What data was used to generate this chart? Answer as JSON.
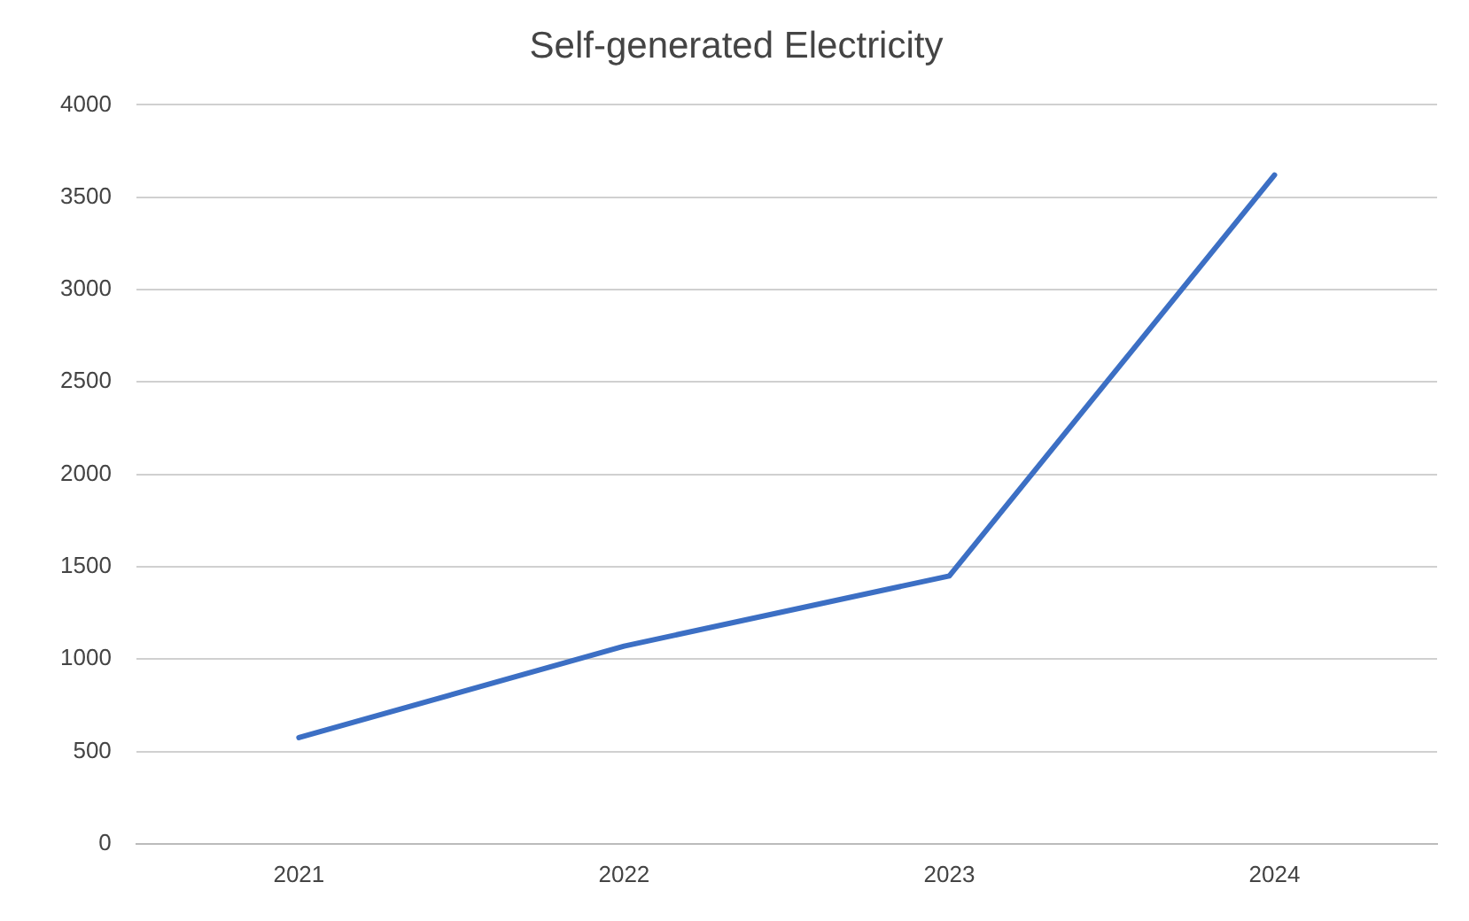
{
  "chart_data": {
    "type": "line",
    "title": "Self-generated Electricity",
    "categories": [
      "2021",
      "2022",
      "2023",
      "2024"
    ],
    "series": [
      {
        "color": "#3c6fc4",
        "values": [
          575,
          1070,
          1450,
          3620
        ]
      }
    ],
    "ylim": [
      0,
      4000
    ],
    "yticks": [
      0,
      500,
      1000,
      1500,
      2000,
      2500,
      3000,
      3500,
      4000
    ],
    "grid": "y",
    "legend": false,
    "marker": "none",
    "line_style": "solid"
  }
}
